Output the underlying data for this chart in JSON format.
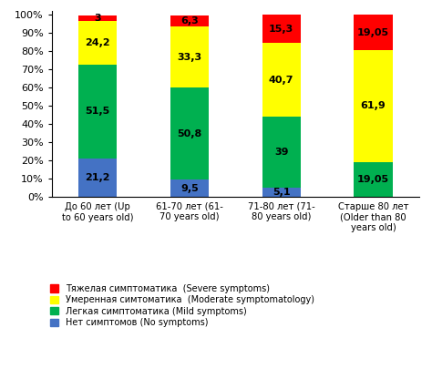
{
  "categories": [
    "До 60 лет (Up\nto 60 years old)",
    "61-70 лет (61-\n70 years old)",
    "71-80 лет (71-\n80 years old)",
    "Старше 80 лет\n(Older than 80\nyears old)"
  ],
  "segments": {
    "no_symptoms": [
      21.2,
      9.5,
      5.1,
      0.0
    ],
    "mild": [
      51.5,
      50.8,
      39.0,
      19.05
    ],
    "moderate": [
      24.2,
      33.3,
      40.7,
      61.9
    ],
    "severe": [
      3.0,
      6.3,
      15.3,
      19.05
    ]
  },
  "colors": {
    "no_symptoms": "#4472C4",
    "mild": "#00B050",
    "moderate": "#FFFF00",
    "severe": "#FF0000"
  },
  "labels": {
    "severe": "Тяжелая симптоматика  (Severe symptoms)",
    "moderate": "Умеренная симтоматика  (Moderate symptomatology)",
    "mild": "Легкая симптоматика (Mild symptoms)",
    "no_symptoms": "Нет симптомов (No symptoms)"
  },
  "yticks": [
    0,
    10,
    20,
    30,
    40,
    50,
    60,
    70,
    80,
    90,
    100
  ],
  "ylim": [
    0,
    102
  ]
}
